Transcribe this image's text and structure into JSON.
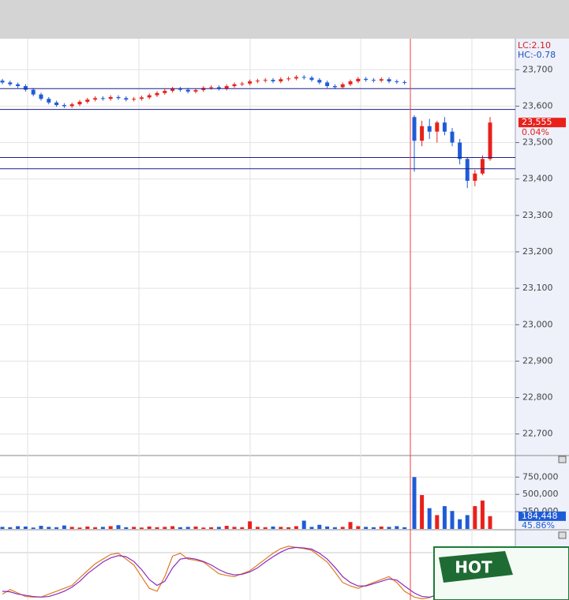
{
  "chart_data": [
    {
      "type": "candlestick",
      "categories": [
        null,
        null,
        null,
        null,
        null,
        null,
        null,
        null,
        null,
        null,
        null,
        null,
        null,
        null,
        null,
        null,
        null,
        null,
        null,
        null,
        null,
        null,
        null,
        null,
        null,
        null,
        null,
        null,
        null,
        null,
        null,
        null,
        null,
        null,
        null,
        null,
        null,
        null,
        null,
        null,
        null,
        null,
        null,
        null,
        null,
        null,
        null,
        null,
        null,
        null,
        null,
        null,
        null,
        null,
        null,
        null,
        null,
        null,
        null,
        null,
        null,
        null,
        null,
        null
      ],
      "open": [
        23670,
        23665,
        23660,
        23655,
        23645,
        23632,
        23620,
        23610,
        23603,
        23600,
        23605,
        23612,
        23618,
        23622,
        23620,
        23625,
        23622,
        23618,
        23620,
        23624,
        23630,
        23636,
        23642,
        23648,
        23645,
        23640,
        23644,
        23650,
        23652,
        23648,
        23655,
        23660,
        23662,
        23668,
        23670,
        23672,
        23668,
        23674,
        23676,
        23680,
        23678,
        23672,
        23665,
        23655,
        23652,
        23660,
        23668,
        23675,
        23672,
        23670,
        23674,
        23668,
        23666,
        23570,
        23505,
        23545,
        23530,
        23555,
        23530,
        23500,
        23455,
        23395,
        23415,
        23455
      ],
      "high": [
        23675,
        23670,
        23665,
        23660,
        23650,
        23637,
        23625,
        23615,
        23608,
        23610,
        23617,
        23623,
        23627,
        23627,
        23630,
        23630,
        23627,
        23625,
        23629,
        23635,
        23641,
        23647,
        23653,
        23653,
        23650,
        23649,
        23655,
        23657,
        23657,
        23660,
        23665,
        23667,
        23673,
        23675,
        23677,
        23677,
        23679,
        23681,
        23685,
        23685,
        23683,
        23677,
        23670,
        23660,
        23665,
        23673,
        23680,
        23680,
        23677,
        23679,
        23679,
        23673,
        23671,
        23575,
        23560,
        23565,
        23560,
        23570,
        23540,
        23510,
        23460,
        23425,
        23465,
        23570
      ],
      "low": [
        23660,
        23655,
        23650,
        23640,
        23627,
        23615,
        23605,
        23598,
        23595,
        23595,
        23600,
        23607,
        23613,
        23615,
        23615,
        23617,
        23613,
        23613,
        23615,
        23619,
        23625,
        23631,
        23637,
        23640,
        23635,
        23635,
        23639,
        23645,
        23643,
        23643,
        23650,
        23655,
        23657,
        23663,
        23665,
        23663,
        23663,
        23669,
        23671,
        23673,
        23667,
        23660,
        23650,
        23647,
        23647,
        23655,
        23663,
        23667,
        23665,
        23665,
        23663,
        23661,
        23659,
        23420,
        23490,
        23510,
        23500,
        23520,
        23490,
        23440,
        23375,
        23380,
        23410,
        23450
      ],
      "close": [
        23665,
        23660,
        23655,
        23645,
        23632,
        23620,
        23610,
        23603,
        23600,
        23605,
        23612,
        23618,
        23622,
        23620,
        23625,
        23622,
        23618,
        23620,
        23624,
        23630,
        23636,
        23642,
        23648,
        23645,
        23640,
        23644,
        23650,
        23652,
        23648,
        23655,
        23660,
        23662,
        23668,
        23670,
        23672,
        23668,
        23674,
        23676,
        23680,
        23678,
        23672,
        23665,
        23655,
        23652,
        23660,
        23668,
        23675,
        23672,
        23670,
        23674,
        23668,
        23666,
        23664,
        23505,
        23545,
        23530,
        23555,
        23530,
        23500,
        23455,
        23395,
        23415,
        23455,
        23555
      ],
      "up_color": "#e8211b",
      "down_color": "#1f5bd6",
      "ylim": [
        22643,
        23783
      ],
      "yticks": [
        {
          "value": 22700,
          "label": "22,700"
        },
        {
          "value": 22800,
          "label": "22,800"
        },
        {
          "value": 22900,
          "label": "22,900"
        },
        {
          "value": 23000,
          "label": "23,000"
        },
        {
          "value": 23100,
          "label": "23,100"
        },
        {
          "value": 23200,
          "label": "23,200"
        },
        {
          "value": 23300,
          "label": "23,300"
        },
        {
          "value": 23400,
          "label": "23,400"
        },
        {
          "value": 23500,
          "label": "23,500"
        },
        {
          "value": 23600,
          "label": "23,600"
        },
        {
          "value": 23700,
          "label": "23,700"
        }
      ],
      "grid": true,
      "hlines": [
        23648,
        23591,
        23459,
        23428
      ],
      "hline_color": "#1b1f8c",
      "last": {
        "value": 23555,
        "label": "23,555"
      },
      "change_label": "0.04%",
      "lc_label": "LC:2.10",
      "hc_label": "HC:-0.78"
    },
    {
      "type": "bar",
      "categories": [
        null,
        null,
        null,
        null,
        null,
        null,
        null,
        null,
        null,
        null,
        null,
        null,
        null,
        null,
        null,
        null,
        null,
        null,
        null,
        null,
        null,
        null,
        null,
        null,
        null,
        null,
        null,
        null,
        null,
        null,
        null,
        null,
        null,
        null,
        null,
        null,
        null,
        null,
        null,
        null,
        null,
        null,
        null,
        null,
        null,
        null,
        null,
        null,
        null,
        null,
        null,
        null,
        null,
        null,
        null,
        null,
        null,
        null,
        null,
        null,
        null,
        null,
        null,
        null
      ],
      "values": [
        30000,
        25000,
        40000,
        35000,
        20000,
        45000,
        30000,
        25000,
        50000,
        30000,
        20000,
        35000,
        25000,
        30000,
        40000,
        55000,
        25000,
        30000,
        20000,
        35000,
        25000,
        30000,
        40000,
        25000,
        30000,
        35000,
        20000,
        25000,
        30000,
        45000,
        30000,
        25000,
        110000,
        30000,
        25000,
        35000,
        30000,
        25000,
        40000,
        120000,
        30000,
        60000,
        35000,
        25000,
        30000,
        100000,
        40000,
        30000,
        25000,
        35000,
        30000,
        40000,
        25000,
        750000,
        490000,
        300000,
        200000,
        330000,
        260000,
        140000,
        200000,
        330000,
        410000,
        184448
      ],
      "ylim": [
        0,
        1050000
      ],
      "yticks": [
        {
          "value": 250000,
          "label": "250,000"
        },
        {
          "value": 500000,
          "label": "500,000"
        },
        {
          "value": 750000,
          "label": "750,000"
        }
      ],
      "grid": true,
      "last": {
        "value": 184448,
        "label": "184,448"
      },
      "ratio_label": "45.86%"
    },
    {
      "type": "line",
      "categories": [
        null,
        null,
        null,
        null,
        null,
        null,
        null,
        null,
        null,
        null,
        null,
        null,
        null,
        null,
        null,
        null,
        null,
        null,
        null,
        null,
        null,
        null,
        null,
        null,
        null,
        null,
        null,
        null,
        null,
        null,
        null,
        null,
        null,
        null,
        null,
        null,
        null,
        null,
        null,
        null,
        null,
        null,
        null,
        null,
        null,
        null,
        null,
        null,
        null,
        null,
        null,
        null,
        null,
        null,
        null,
        null,
        null,
        null,
        null,
        null,
        null,
        null,
        null,
        null
      ],
      "ylim": [
        0,
        100
      ],
      "series": [
        {
          "color": "#e07a1f",
          "values": [
            10,
            18,
            12,
            6,
            5,
            5,
            10,
            15,
            20,
            25,
            38,
            50,
            62,
            70,
            78,
            80,
            70,
            60,
            40,
            20,
            15,
            40,
            75,
            80,
            70,
            68,
            65,
            55,
            45,
            42,
            40,
            45,
            50,
            60,
            70,
            80,
            88,
            92,
            90,
            88,
            85,
            75,
            65,
            48,
            30,
            24,
            20,
            25,
            30,
            35,
            40,
            30,
            15,
            5,
            2,
            4,
            10,
            20,
            30,
            35,
            40,
            45,
            50,
            55
          ]
        },
        {
          "color": "#8a2bc2",
          "values": [
            15,
            14,
            10,
            8,
            6,
            5,
            6,
            10,
            15,
            22,
            32,
            45,
            55,
            65,
            72,
            76,
            74,
            66,
            52,
            35,
            25,
            32,
            55,
            70,
            72,
            70,
            66,
            60,
            52,
            46,
            43,
            44,
            48,
            55,
            65,
            74,
            82,
            88,
            90,
            89,
            87,
            80,
            70,
            56,
            40,
            30,
            24,
            24,
            28,
            32,
            36,
            34,
            24,
            12,
            6,
            5,
            8,
            15,
            24,
            30,
            36,
            40,
            45,
            50
          ]
        }
      ]
    }
  ],
  "banner": {
    "label": "HOT"
  }
}
